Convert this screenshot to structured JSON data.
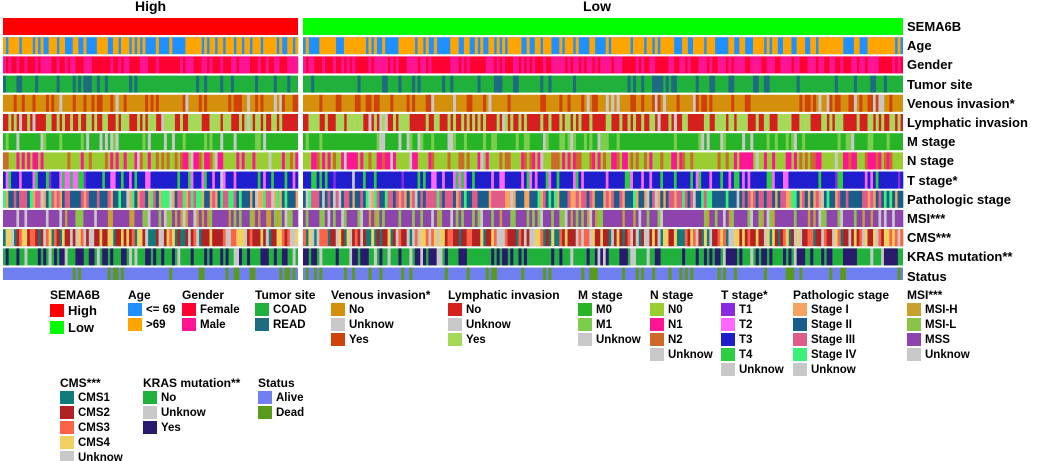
{
  "chart_data": {
    "type": "heatmap",
    "title": "",
    "groups": [
      {
        "name": "High",
        "samples": 110
      },
      {
        "name": "Low",
        "samples": 220
      }
    ],
    "rows": [
      {
        "label": "SEMA6B",
        "categories": [
          "High",
          "Low"
        ],
        "colors": [
          "#ff0000",
          "#00ff00"
        ]
      },
      {
        "label": "Age",
        "categories": [
          "<= 69",
          ">69"
        ],
        "colors": [
          "#1e90ff",
          "#ffa500"
        ]
      },
      {
        "label": "Gender",
        "categories": [
          "Female",
          "Male"
        ],
        "colors": [
          "#ff0033",
          "#ff1493"
        ]
      },
      {
        "label": "Tumor site",
        "categories": [
          "COAD",
          "READ"
        ],
        "colors": [
          "#1fb13b",
          "#1f6b80"
        ]
      },
      {
        "label": "Venous invasion*",
        "categories": [
          "No",
          "Unknow",
          "Yes"
        ],
        "colors": [
          "#d4900a",
          "#c8c8c8",
          "#d0420c"
        ]
      },
      {
        "label": "Lymphatic invasion",
        "categories": [
          "No",
          "Unknow",
          "Yes"
        ],
        "colors": [
          "#d62020",
          "#c8c8c8",
          "#a6d95a"
        ]
      },
      {
        "label": "M stage",
        "categories": [
          "M0",
          "M1",
          "Unknow"
        ],
        "colors": [
          "#27b527",
          "#7ccd4b",
          "#c8c8c8"
        ]
      },
      {
        "label": "N stage",
        "categories": [
          "N0",
          "N1",
          "N2",
          "Unknow"
        ],
        "colors": [
          "#9acd32",
          "#ff1493",
          "#cd6a2a",
          "#c8c8c8"
        ]
      },
      {
        "label": "T stage*",
        "categories": [
          "T1",
          "T2",
          "T3",
          "T4",
          "Unknow"
        ],
        "colors": [
          "#8a2be2",
          "#ff66ff",
          "#1e1ecd",
          "#2ecc40",
          "#c8c8c8"
        ]
      },
      {
        "label": "Pathologic stage",
        "categories": [
          "Stage I",
          "Stage II",
          "Stage III",
          "Stage IV",
          "Unknow"
        ],
        "colors": [
          "#f4a460",
          "#1a5c8a",
          "#e05a8a",
          "#3cf07a",
          "#c8c8c8"
        ]
      },
      {
        "label": "MSI***",
        "categories": [
          "MSI-H",
          "MSI-L",
          "MSS",
          "Unknow"
        ],
        "colors": [
          "#c8a032",
          "#8bc34a",
          "#8e44ad",
          "#c8c8c8"
        ]
      },
      {
        "label": "CMS***",
        "categories": [
          "CMS1",
          "CMS2",
          "CMS3",
          "CMS4",
          "Unknow"
        ],
        "colors": [
          "#117a7a",
          "#b22222",
          "#ff6347",
          "#f0d060",
          "#c8c8c8"
        ]
      },
      {
        "label": "KRAS mutation**",
        "categories": [
          "No",
          "Unknow",
          "Yes"
        ],
        "colors": [
          "#1fb13b",
          "#c8c8c8",
          "#2a1a6e"
        ]
      },
      {
        "label": "Status",
        "categories": [
          "Alive",
          "Dead"
        ],
        "colors": [
          "#6f7ff0",
          "#5a9a1a"
        ]
      }
    ]
  },
  "legends": [
    {
      "title": "SEMA6B",
      "items": [
        "High",
        "Low"
      ]
    },
    {
      "title": "Age",
      "items": [
        "<= 69",
        ">69"
      ]
    },
    {
      "title": "Gender",
      "items": [
        "Female",
        "Male"
      ]
    },
    {
      "title": "Tumor site",
      "items": [
        "COAD",
        "READ"
      ]
    },
    {
      "title": "Venous invasion*",
      "items": [
        "No",
        "Unknow",
        "Yes"
      ]
    },
    {
      "title": "Lymphatic invasion",
      "items": [
        "No",
        "Unknow",
        "Yes"
      ]
    },
    {
      "title": "M stage",
      "items": [
        "M0",
        "M1",
        "Unknow"
      ]
    },
    {
      "title": "N stage",
      "items": [
        "N0",
        "N1",
        "N2",
        "Unknow"
      ]
    },
    {
      "title": "T stage*",
      "items": [
        "T1",
        "T2",
        "T3",
        "T4",
        "Unknow"
      ]
    },
    {
      "title": "Pathologic stage",
      "items": [
        "Stage I",
        "Stage II",
        "Stage III",
        "Stage IV",
        "Unknow"
      ]
    },
    {
      "title": "MSI***",
      "items": [
        "MSI-H",
        "MSI-L",
        "MSS",
        "Unknow"
      ]
    },
    {
      "title": "CMS***",
      "items": [
        "CMS1",
        "CMS2",
        "CMS3",
        "CMS4",
        "Unknow"
      ]
    },
    {
      "title": "KRAS mutation**",
      "items": [
        "No",
        "Unknow",
        "Yes"
      ]
    },
    {
      "title": "Status",
      "items": [
        "Alive",
        "Dead"
      ]
    }
  ]
}
